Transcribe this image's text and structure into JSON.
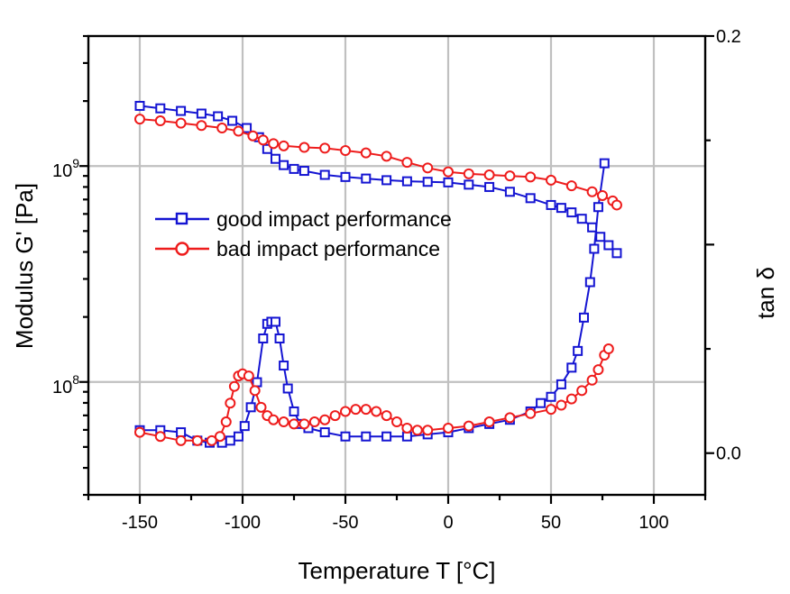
{
  "chart_data": {
    "type": "scatter",
    "xlabel": "Temperature T [°C]",
    "ylabel": "Modulus G' [Pa]",
    "y2label": "tan δ",
    "x_ticks": [
      "-150",
      "-100",
      "-50",
      "0",
      "50",
      "100"
    ],
    "y_ticks": [
      {
        "base": "10",
        "exp": "9"
      },
      {
        "base": "10",
        "exp": "8"
      }
    ],
    "y2_ticks": [
      "0.2",
      "0.0"
    ],
    "xlim": [
      -175,
      125
    ],
    "ylim_log": [
      30000000,
      4000000000
    ],
    "y2lim": [
      -0.02,
      0.2
    ],
    "y_scale": "log",
    "grid": true,
    "legend_position": "center-left",
    "series": [
      {
        "name": "good impact performance",
        "color": "#1414d2",
        "marker": "square",
        "axis": "left",
        "quantity": "G'",
        "points": [
          [
            -150,
            1900000000
          ],
          [
            -140,
            1850000000
          ],
          [
            -130,
            1800000000
          ],
          [
            -120,
            1750000000
          ],
          [
            -112,
            1700000000
          ],
          [
            -105,
            1620000000
          ],
          [
            -98,
            1500000000
          ],
          [
            -92,
            1360000000
          ],
          [
            -88,
            1200000000
          ],
          [
            -84,
            1080000000
          ],
          [
            -80,
            1010000000
          ],
          [
            -75,
            970000000
          ],
          [
            -70,
            950000000
          ],
          [
            -60,
            910000000
          ],
          [
            -50,
            890000000
          ],
          [
            -40,
            875000000
          ],
          [
            -30,
            860000000
          ],
          [
            -20,
            850000000
          ],
          [
            -10,
            845000000
          ],
          [
            0,
            840000000
          ],
          [
            10,
            820000000
          ],
          [
            20,
            800000000
          ],
          [
            30,
            760000000
          ],
          [
            40,
            710000000
          ],
          [
            50,
            660000000
          ],
          [
            55,
            640000000
          ],
          [
            60,
            610000000
          ],
          [
            65,
            570000000
          ],
          [
            70,
            520000000
          ],
          [
            74,
            470000000
          ],
          [
            78,
            430000000
          ],
          [
            82,
            395000000
          ]
        ]
      },
      {
        "name": "bad impact performance",
        "color": "#ee1c1c",
        "marker": "circle",
        "axis": "left",
        "quantity": "G'",
        "points": [
          [
            -150,
            1650000000
          ],
          [
            -140,
            1620000000
          ],
          [
            -130,
            1580000000
          ],
          [
            -120,
            1540000000
          ],
          [
            -110,
            1500000000
          ],
          [
            -102,
            1450000000
          ],
          [
            -95,
            1380000000
          ],
          [
            -90,
            1320000000
          ],
          [
            -85,
            1270000000
          ],
          [
            -80,
            1240000000
          ],
          [
            -70,
            1220000000
          ],
          [
            -60,
            1210000000
          ],
          [
            -50,
            1180000000
          ],
          [
            -40,
            1150000000
          ],
          [
            -30,
            1110000000
          ],
          [
            -20,
            1040000000
          ],
          [
            -10,
            980000000
          ],
          [
            0,
            940000000
          ],
          [
            10,
            920000000
          ],
          [
            20,
            910000000
          ],
          [
            30,
            900000000
          ],
          [
            40,
            890000000
          ],
          [
            50,
            860000000
          ],
          [
            60,
            810000000
          ],
          [
            70,
            760000000
          ],
          [
            75,
            730000000
          ],
          [
            80,
            690000000
          ],
          [
            82,
            660000000
          ]
        ]
      },
      {
        "name": "good impact performance",
        "color": "#1414d2",
        "marker": "square",
        "axis": "right",
        "quantity": "tan δ",
        "points": [
          [
            -150,
            0.011
          ],
          [
            -140,
            0.011
          ],
          [
            -130,
            0.01
          ],
          [
            -122,
            0.006
          ],
          [
            -116,
            0.005
          ],
          [
            -110,
            0.005
          ],
          [
            -106,
            0.006
          ],
          [
            -102,
            0.008
          ],
          [
            -99,
            0.013
          ],
          [
            -96,
            0.022
          ],
          [
            -93,
            0.034
          ],
          [
            -90,
            0.055
          ],
          [
            -88,
            0.062
          ],
          [
            -86,
            0.063
          ],
          [
            -84,
            0.063
          ],
          [
            -82,
            0.055
          ],
          [
            -80,
            0.042
          ],
          [
            -78,
            0.031
          ],
          [
            -75,
            0.02
          ],
          [
            -72,
            0.014
          ],
          [
            -68,
            0.012
          ],
          [
            -60,
            0.01
          ],
          [
            -50,
            0.008
          ],
          [
            -40,
            0.008
          ],
          [
            -30,
            0.008
          ],
          [
            -20,
            0.008
          ],
          [
            -10,
            0.009
          ],
          [
            0,
            0.01
          ],
          [
            10,
            0.012
          ],
          [
            20,
            0.014
          ],
          [
            30,
            0.016
          ],
          [
            40,
            0.02
          ],
          [
            45,
            0.024
          ],
          [
            50,
            0.027
          ],
          [
            55,
            0.033
          ],
          [
            60,
            0.041
          ],
          [
            63,
            0.049
          ],
          [
            66,
            0.065
          ],
          [
            69,
            0.082
          ],
          [
            71,
            0.098
          ],
          [
            73,
            0.118
          ],
          [
            76,
            0.139
          ]
        ]
      },
      {
        "name": "bad impact performance",
        "color": "#ee1c1c",
        "marker": "circle",
        "axis": "right",
        "quantity": "tan δ",
        "points": [
          [
            -150,
            0.01
          ],
          [
            -140,
            0.008
          ],
          [
            -130,
            0.006
          ],
          [
            -122,
            0.006
          ],
          [
            -115,
            0.006
          ],
          [
            -111,
            0.008
          ],
          [
            -108,
            0.015
          ],
          [
            -106,
            0.024
          ],
          [
            -104,
            0.032
          ],
          [
            -102,
            0.037
          ],
          [
            -100,
            0.038
          ],
          [
            -97,
            0.037
          ],
          [
            -94,
            0.03
          ],
          [
            -91,
            0.022
          ],
          [
            -88,
            0.018
          ],
          [
            -85,
            0.016
          ],
          [
            -80,
            0.015
          ],
          [
            -75,
            0.014
          ],
          [
            -70,
            0.014
          ],
          [
            -65,
            0.015
          ],
          [
            -60,
            0.016
          ],
          [
            -55,
            0.018
          ],
          [
            -50,
            0.02
          ],
          [
            -45,
            0.021
          ],
          [
            -40,
            0.021
          ],
          [
            -35,
            0.02
          ],
          [
            -30,
            0.018
          ],
          [
            -25,
            0.015
          ],
          [
            -20,
            0.012
          ],
          [
            -15,
            0.011
          ],
          [
            -10,
            0.011
          ],
          [
            0,
            0.012
          ],
          [
            10,
            0.013
          ],
          [
            20,
            0.015
          ],
          [
            30,
            0.017
          ],
          [
            40,
            0.019
          ],
          [
            50,
            0.021
          ],
          [
            55,
            0.023
          ],
          [
            60,
            0.026
          ],
          [
            65,
            0.03
          ],
          [
            70,
            0.035
          ],
          [
            73,
            0.04
          ],
          [
            76,
            0.047
          ],
          [
            78,
            0.05
          ]
        ]
      }
    ]
  }
}
